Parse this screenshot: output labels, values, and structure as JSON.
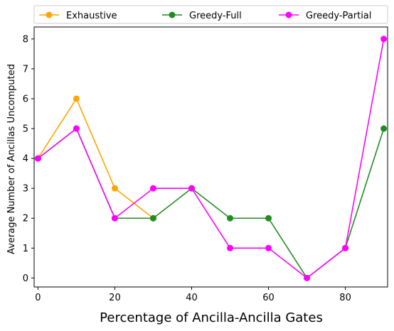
{
  "chart_data": {
    "type": "line",
    "title": "",
    "xlabel": "Percentage of Ancilla-Ancilla Gates",
    "ylabel": "Average Number of Ancillas Uncomputed",
    "xlim": [
      -1,
      91
    ],
    "ylim": [
      -0.3,
      8.4
    ],
    "xticks": [
      0,
      20,
      40,
      60,
      80
    ],
    "yticks": [
      0,
      1,
      2,
      3,
      4,
      5,
      6,
      7,
      8
    ],
    "grid": false,
    "legend_position": "top, above plot, 3 columns",
    "x": [
      0,
      10,
      20,
      30,
      40,
      50,
      60,
      70,
      80,
      90
    ],
    "series": [
      {
        "name": "Exhaustive",
        "color": "#FFA500",
        "marker": "circle",
        "values": [
          4,
          6,
          3,
          2,
          null,
          null,
          null,
          null,
          null,
          null
        ]
      },
      {
        "name": "Greedy-Full",
        "color": "#228B22",
        "marker": "circle",
        "values": [
          4,
          5,
          2,
          2,
          3,
          2,
          2,
          0,
          1,
          5
        ]
      },
      {
        "name": "Greedy-Partial",
        "color": "#FF00FF",
        "marker": "circle",
        "values": [
          4,
          5,
          2,
          3,
          3,
          1,
          1,
          0,
          1,
          8
        ]
      }
    ]
  }
}
